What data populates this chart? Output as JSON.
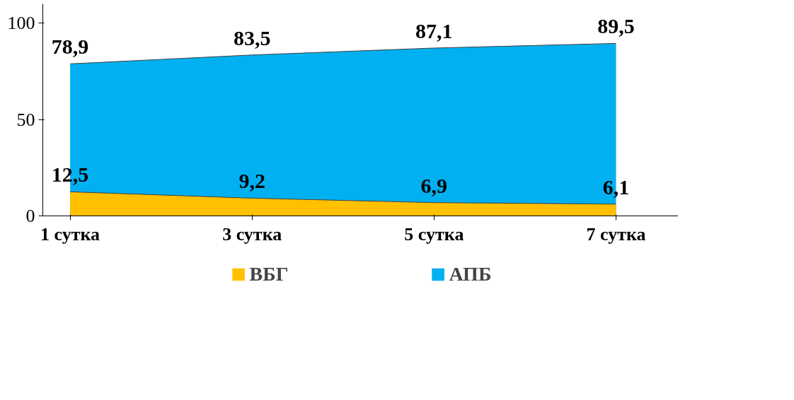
{
  "chart_data": {
    "type": "area",
    "categories": [
      "1 сутка",
      "3 сутка",
      "5 сутка",
      "7 сутка"
    ],
    "series": [
      {
        "name": "ВБГ",
        "color": "#ffc000",
        "values": [
          12.5,
          9.2,
          6.9,
          6.1
        ],
        "value_labels": [
          "12,5",
          "9,2",
          "6,9",
          "6,1"
        ]
      },
      {
        "name": "АПБ",
        "color": "#00b0f0",
        "values": [
          78.9,
          83.5,
          87.1,
          89.5
        ],
        "value_labels": [
          "78,9",
          "83,5",
          "87,1",
          "89,5"
        ]
      }
    ],
    "ylim": [
      0,
      110
    ],
    "yticks": [
      0,
      50,
      100
    ],
    "legend": "bottom",
    "grid": false
  }
}
